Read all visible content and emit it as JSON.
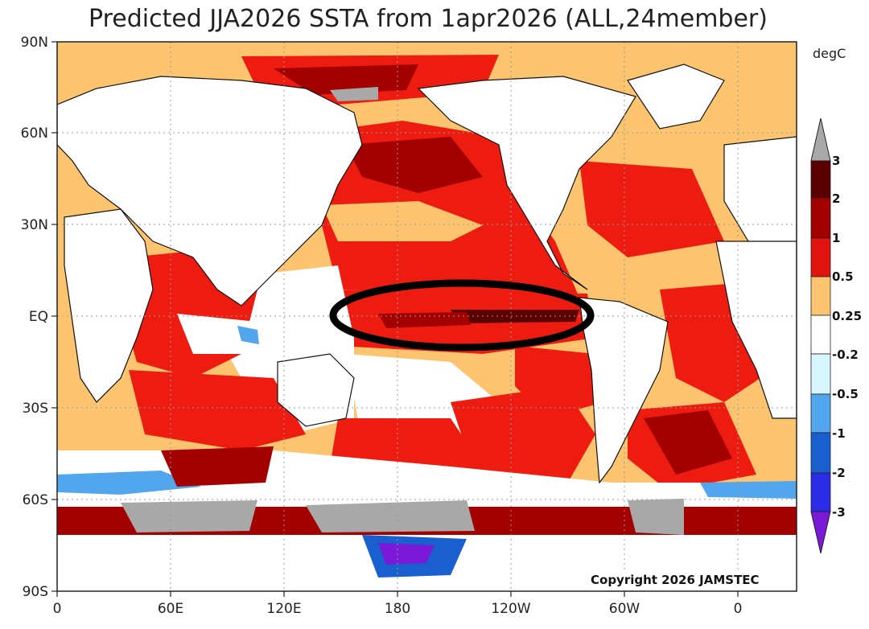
{
  "title": "Predicted JJA2026 SSTA from 1apr2026 (ALL,24member)",
  "unit": "degC",
  "copyright": "Copyright 2026 JAMSTEC",
  "lat_labels": [
    "90N",
    "60N",
    "30N",
    "EQ",
    "30S",
    "60S",
    "90S"
  ],
  "lon_labels": [
    "0",
    "60E",
    "120E",
    "180",
    "120W",
    "60W",
    "0"
  ],
  "colorbar": {
    "labels": [
      "3",
      "2",
      "1",
      "0.5",
      "0.25",
      "-0.2",
      "-0.5",
      "-1",
      "-2",
      "-3"
    ],
    "colors": {
      "above_3": "#a8a8a8",
      "2_3": "#5a0000",
      "1_2": "#a30000",
      "0.5_1": "#e0130f",
      "0.25_0.5": "#fe1a0a",
      "-0.2_0.25": "#fcc46e",
      "-0.5_-0.2": "#ffffff",
      "-1_-0.5": "#d8f6ff",
      "-2_-1": "#52a6ee",
      "-3_-2": "#1a5fd0",
      "below_-3": "#7b19d8"
    }
  },
  "colors": {
    "ocean_warm": "#fcc46e",
    "ocean_hot": "#ee1c10",
    "ocean_very_hot": "#a30000",
    "land": "#ffffff",
    "ice": "#a8a8a8",
    "cool": "#52a6ee",
    "annotation_ring": "#000000"
  }
}
